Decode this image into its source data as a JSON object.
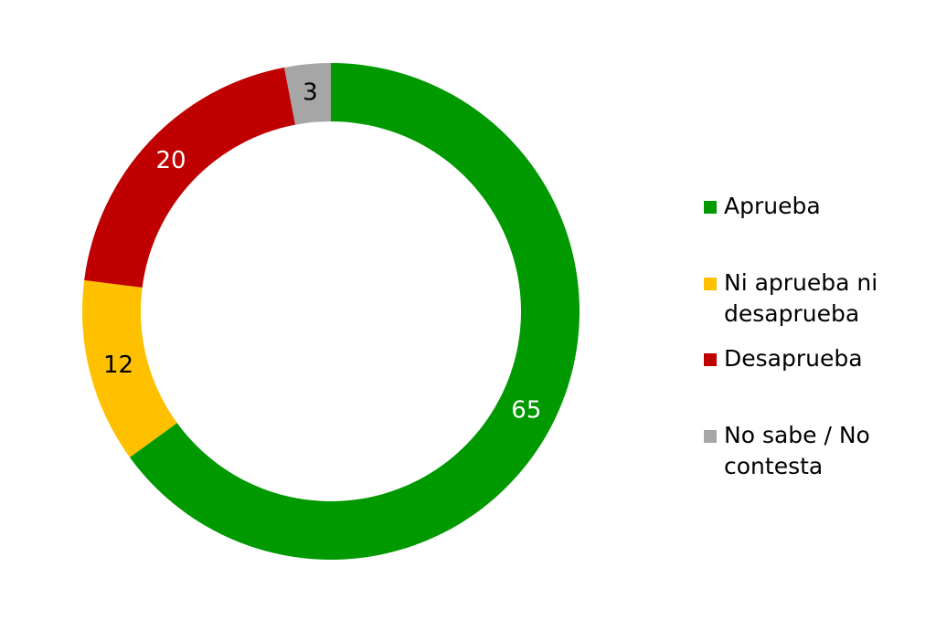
{
  "chart_data": {
    "type": "donut",
    "categories": [
      "Aprueba",
      "Ni aprueba ni desaprueba",
      "Desaprueba",
      "No sabe / No contesta"
    ],
    "values": [
      65,
      12,
      20,
      3
    ],
    "colors": [
      "#009900",
      "#ffc000",
      "#c00000",
      "#a6a6a6"
    ],
    "legend": "right"
  }
}
